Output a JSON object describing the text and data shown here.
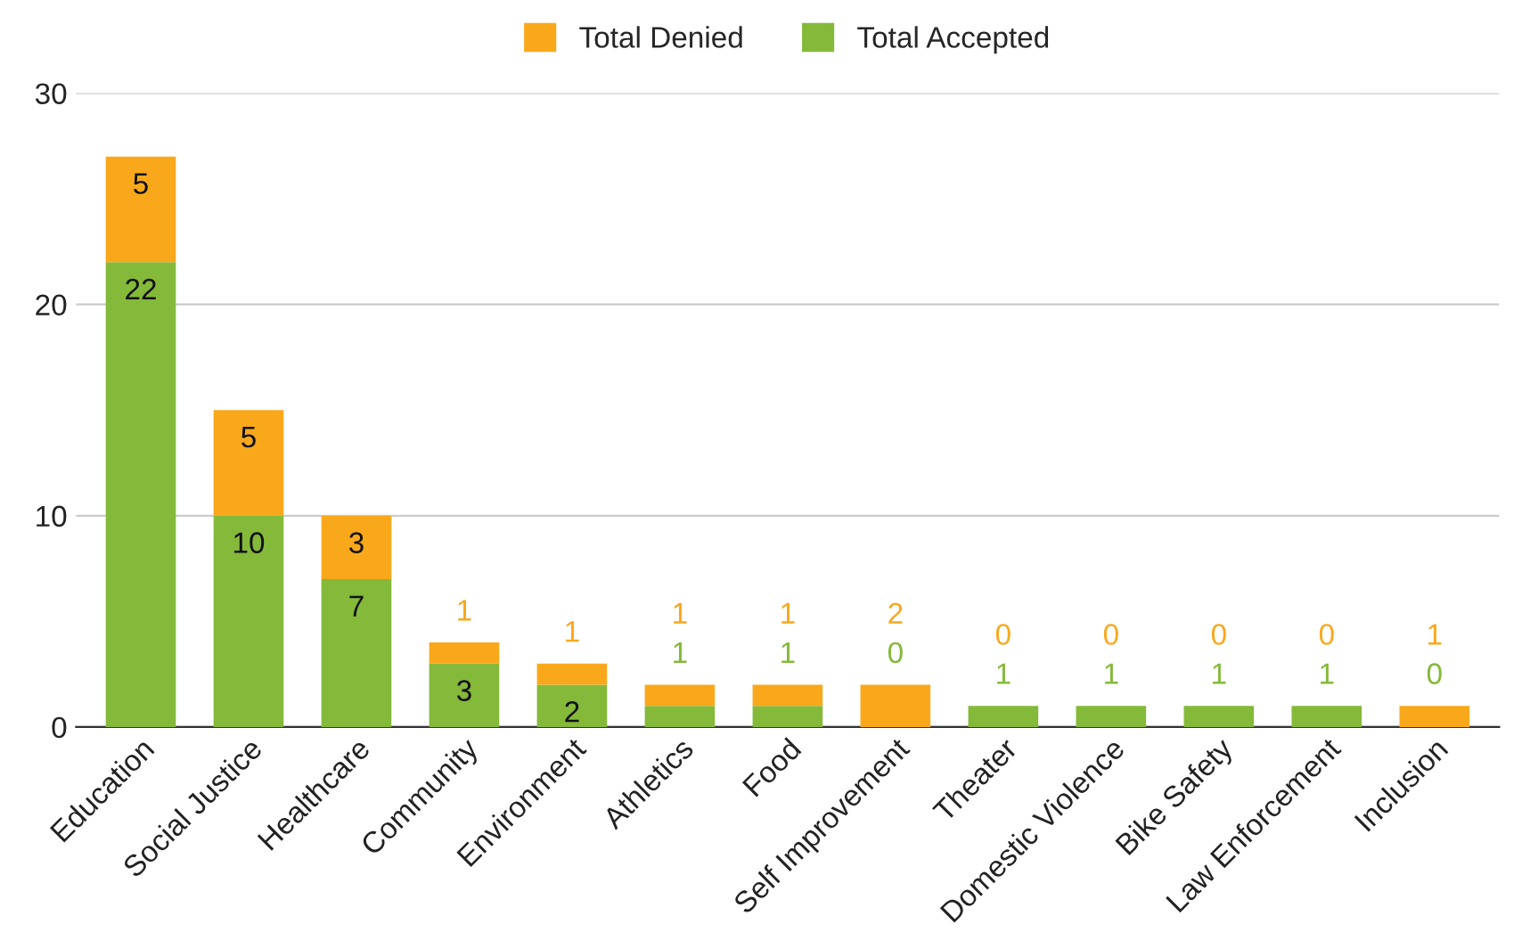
{
  "chart_data": {
    "type": "bar",
    "stacked": true,
    "categories": [
      "Education",
      "Social Justice",
      "Healthcare",
      "Community",
      "Environment",
      "Athletics",
      "Food",
      "Self Improvement",
      "Theater",
      "Domestic Violence",
      "Bike Safety",
      "Law Enforcement",
      "Inclusion"
    ],
    "series": [
      {
        "name": "Total Accepted",
        "color": "#84b93a",
        "values": [
          22,
          10,
          7,
          3,
          2,
          1,
          1,
          0,
          1,
          1,
          1,
          1,
          0
        ]
      },
      {
        "name": "Total Denied",
        "color": "#f9a81c",
        "values": [
          5,
          5,
          3,
          1,
          1,
          1,
          1,
          2,
          0,
          0,
          0,
          0,
          1
        ]
      }
    ],
    "ylim": [
      0,
      30
    ],
    "yticks": [
      0,
      10,
      20,
      30
    ],
    "grid": "y",
    "legend": "top",
    "data_labels": true
  }
}
